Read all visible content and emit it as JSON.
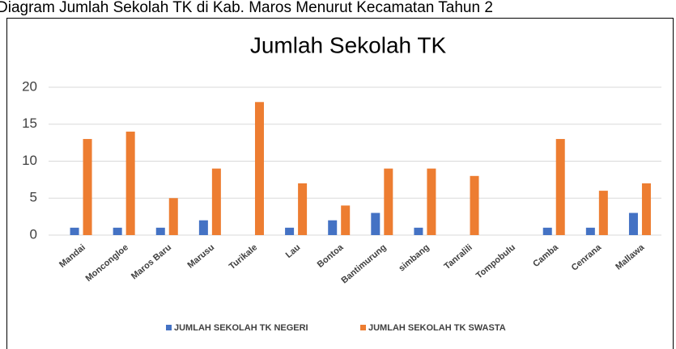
{
  "caption": "Diagram Jumlah Sekolah TK di Kab. Maros Menurut Kecamatan Tahun 2",
  "chart_data": {
    "type": "bar",
    "title": "Jumlah Sekolah TK",
    "categories": [
      "Mandai",
      "Moncongloe",
      "Maros Baru",
      "Marusu",
      "Turikale",
      "Lau",
      "Bontoa",
      "Bantimurung",
      "simbang",
      "Tanralili",
      "Tompobulu",
      "Camba",
      "Cenrana",
      "Mallawa"
    ],
    "series": [
      {
        "name": "JUMLAH SEKOLAH TK NEGERI",
        "color": "#4472c4",
        "values": [
          1,
          1,
          1,
          2,
          null,
          1,
          2,
          3,
          1,
          null,
          null,
          1,
          1,
          3
        ]
      },
      {
        "name": "JUMLAH SEKOLAH TK SWASTA",
        "color": "#ed7d31",
        "values": [
          13,
          14,
          5,
          9,
          18,
          7,
          4,
          9,
          9,
          8,
          null,
          13,
          6,
          7
        ]
      }
    ],
    "ylim": [
      0,
      20
    ],
    "yticks": [
      0,
      5,
      10,
      15,
      20
    ],
    "grid": true,
    "legend": "bottom"
  }
}
